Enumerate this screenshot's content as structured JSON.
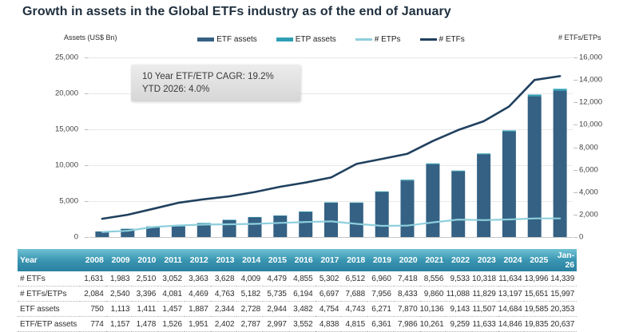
{
  "title": "Growth in assets in the Global ETFs industry as of the end of January",
  "chart": {
    "left_axis_label": "Assets (US$ Bn)",
    "right_axis_label": "# ETFs/ETPs",
    "annotation": {
      "line1": "10 Year ETF/ETP CAGR: 19.2%",
      "line2": "YTD 2026: 4.0%"
    },
    "legend": [
      {
        "label": "ETF assets",
        "type": "bar",
        "color": "#346184"
      },
      {
        "label": "ETP assets",
        "type": "bar",
        "color": "#2f9fb4"
      },
      {
        "label": "# ETPs",
        "type": "line",
        "color": "#8ecfdc"
      },
      {
        "label": "# ETFs",
        "type": "line",
        "color": "#20405e"
      }
    ]
  },
  "colors": {
    "title_text": "#20303f",
    "grid_line": "#e8e8e8",
    "zero_axis_line": "#c6c6c6",
    "tick_text": "#404040",
    "table_header_teal_top": "#70c2d3",
    "table_header_teal_bottom": "#2a80a0",
    "annotation_bg": "#e0e0e0"
  },
  "chart_data": {
    "type": "bar",
    "subtype": "stacked-bar + line combo, dual y-axis",
    "title": "Growth in assets in the Global ETFs industry as of the end of January",
    "categories": [
      "2008",
      "2009",
      "2010",
      "2011",
      "2012",
      "2013",
      "2014",
      "2015",
      "2016",
      "2017",
      "2018",
      "2019",
      "2020",
      "2021",
      "2022",
      "2023",
      "2024",
      "2025",
      "Jan-26"
    ],
    "left_axis": {
      "label": "Assets (US$ Bn)",
      "min": 0,
      "max": 25000,
      "step": 5000
    },
    "right_axis": {
      "label": "# ETFs/ETPs",
      "min": 0,
      "max": 16000,
      "step": 2000
    },
    "grid": true,
    "legend_position": "top-center",
    "series": [
      {
        "name": "ETF assets",
        "type": "bar",
        "axis": "left",
        "color": "#346184",
        "values": [
          750,
          1113,
          1411,
          1457,
          1887,
          2344,
          2728,
          2944,
          3482,
          4754,
          4743,
          6271,
          7870,
          10136,
          9143,
          11507,
          14684,
          19585,
          20353
        ]
      },
      {
        "name": "ETP assets",
        "type": "bar",
        "axis": "left",
        "stacked_on": "ETF assets",
        "color": "#2f9fb4",
        "values": [
          24,
          44,
          67,
          69,
          64,
          58,
          59,
          53,
          70,
          84,
          72,
          90,
          116,
          125,
          116,
          126,
          162,
          250,
          284
        ]
      },
      {
        "name": "# ETPs",
        "type": "line",
        "axis": "right",
        "color": "#8ecfdc",
        "width": 2.2,
        "values": [
          453,
          557,
          886,
          1029,
          1106,
          1135,
          1173,
          1256,
          1339,
          1395,
          1176,
          996,
          1015,
          1304,
          1555,
          1511,
          1563,
          1655,
          1658
        ]
      },
      {
        "name": "# ETFs",
        "type": "line",
        "axis": "right",
        "color": "#20405e",
        "width": 2.6,
        "values": [
          1631,
          1983,
          2510,
          3052,
          3363,
          3628,
          4009,
          4479,
          4855,
          5302,
          6512,
          6960,
          7418,
          8556,
          9533,
          10318,
          11634,
          13996,
          14339
        ]
      }
    ],
    "bar_totals_note": "teal cap tops equal ETF/ETP assets row: ETF assets + ETP assets"
  },
  "table": {
    "header": [
      "Year",
      "2008",
      "2009",
      "2010",
      "2011",
      "2012",
      "2013",
      "2014",
      "2015",
      "2016",
      "2017",
      "2018",
      "2019",
      "2020",
      "2021",
      "2022",
      "2023",
      "2024",
      "2025",
      "Jan-26"
    ],
    "rows": [
      [
        "# ETFs",
        "1,631",
        "1,983",
        "2,510",
        "3,052",
        "3,363",
        "3,628",
        "4,009",
        "4,479",
        "4,855",
        "5,302",
        "6,512",
        "6,960",
        "7,418",
        "8,556",
        "9,533",
        "10,318",
        "11,634",
        "13,996",
        "14,339"
      ],
      [
        "# ETFs/ETPs",
        "2,084",
        "2,540",
        "3,396",
        "4,081",
        "4,469",
        "4,763",
        "5,182",
        "5,735",
        "6,194",
        "6,697",
        "7,688",
        "7,956",
        "8,433",
        "9,860",
        "11,088",
        "11,829",
        "13,197",
        "15,651",
        "15,997"
      ],
      [
        "ETF assets",
        "750",
        "1,113",
        "1,411",
        "1,457",
        "1,887",
        "2,344",
        "2,728",
        "2,944",
        "3,482",
        "4,754",
        "4,743",
        "6,271",
        "7,870",
        "10,136",
        "9,143",
        "11,507",
        "14,684",
        "19,585",
        "20,353"
      ],
      [
        "ETF/ETP assets",
        "774",
        "1,157",
        "1,478",
        "1,526",
        "1,951",
        "2,402",
        "2,787",
        "2,997",
        "3,552",
        "4,838",
        "4,815",
        "6,361",
        "7,986",
        "10,261",
        "9,259",
        "11,633",
        "14,846",
        "19,835",
        "20,637"
      ]
    ]
  }
}
